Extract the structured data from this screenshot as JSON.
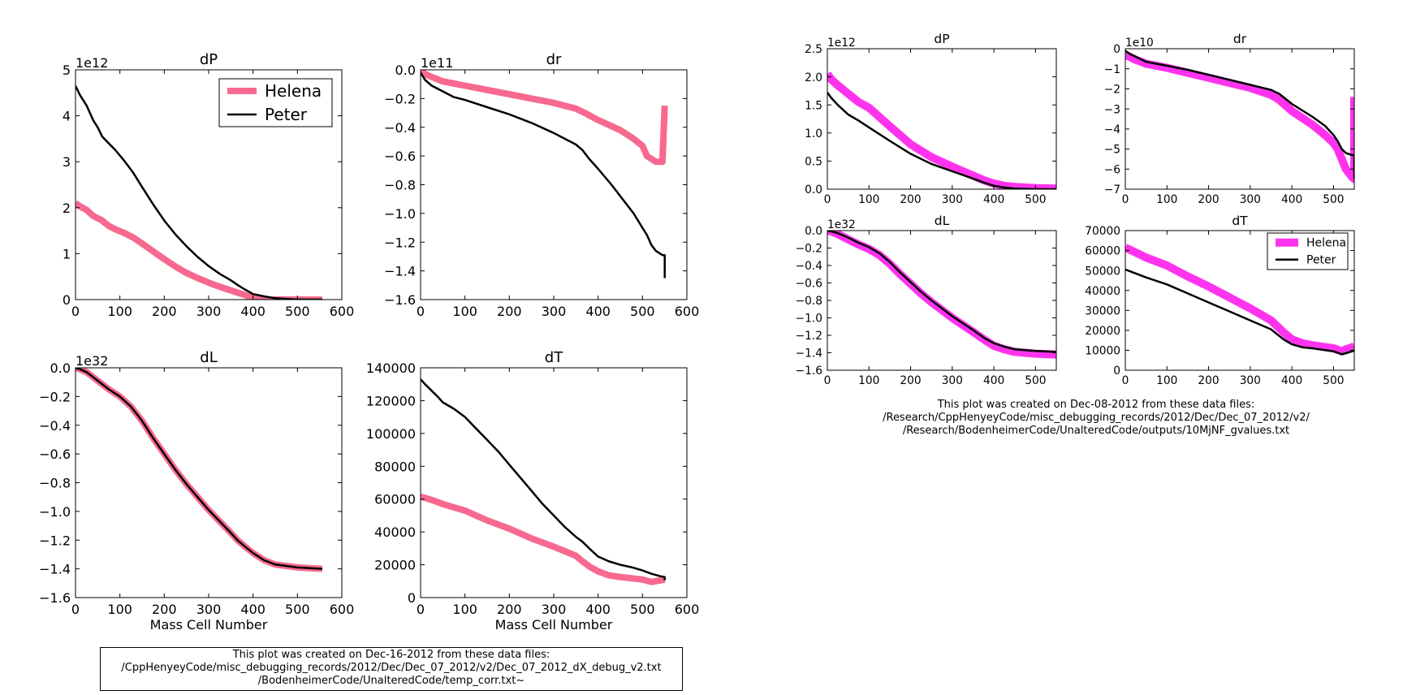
{
  "colors": {
    "helena_left": "#f7698f",
    "helena_right": "#ff33ee",
    "peter": "#000000"
  },
  "chart_data": [
    {
      "type": "line",
      "title": "dP",
      "xlabel": "",
      "ylabel": "",
      "exponent": "1e12",
      "xlim": [
        0,
        600
      ],
      "ylim": [
        0,
        5
      ],
      "xticks": [
        "0",
        "100",
        "200",
        "300",
        "400",
        "500",
        "600"
      ],
      "yticks": [
        "0",
        "1",
        "2",
        "3",
        "4",
        "5"
      ],
      "legend": "top-right",
      "series": [
        {
          "name": "Helena",
          "x": [
            0,
            10,
            25,
            40,
            60,
            75,
            90,
            110,
            130,
            150,
            175,
            200,
            225,
            250,
            275,
            300,
            325,
            350,
            375,
            400,
            425,
            450,
            500,
            556
          ],
          "y": [
            2.1,
            2.03,
            1.95,
            1.82,
            1.72,
            1.6,
            1.53,
            1.45,
            1.35,
            1.22,
            1.05,
            0.88,
            0.72,
            0.58,
            0.47,
            0.37,
            0.28,
            0.2,
            0.12,
            0.04,
            0,
            0,
            0,
            0
          ]
        },
        {
          "name": "Peter",
          "x": [
            0,
            10,
            25,
            40,
            50,
            60,
            75,
            90,
            110,
            130,
            150,
            175,
            200,
            225,
            250,
            275,
            300,
            325,
            350,
            365,
            380,
            400,
            425,
            450,
            500,
            556
          ],
          "y": [
            4.65,
            4.45,
            4.22,
            3.9,
            3.75,
            3.55,
            3.4,
            3.25,
            3.02,
            2.76,
            2.45,
            2.07,
            1.72,
            1.42,
            1.16,
            0.93,
            0.73,
            0.56,
            0.42,
            0.32,
            0.23,
            0.12,
            0.07,
            0.03,
            0,
            0
          ]
        }
      ]
    },
    {
      "type": "line",
      "title": "dr",
      "xlabel": "",
      "ylabel": "",
      "exponent": "1e11",
      "xlim": [
        0,
        600
      ],
      "ylim": [
        -1.6,
        0.0
      ],
      "xticks": [
        "0",
        "100",
        "200",
        "300",
        "400",
        "500",
        "600"
      ],
      "yticks": [
        "0.0",
        "−0.2",
        "−0.4",
        "−0.6",
        "−0.8",
        "−1.0",
        "−1.2",
        "−1.4",
        "−1.6"
      ],
      "series": [
        {
          "name": "Helena",
          "x": [
            0,
            10,
            25,
            50,
            100,
            150,
            200,
            250,
            300,
            350,
            370,
            400,
            450,
            480,
            500,
            510,
            520,
            530,
            545,
            550,
            550
          ],
          "y": [
            0,
            -0.03,
            -0.05,
            -0.08,
            -0.11,
            -0.14,
            -0.17,
            -0.2,
            -0.23,
            -0.27,
            -0.3,
            -0.35,
            -0.42,
            -0.48,
            -0.53,
            -0.6,
            -0.62,
            -0.64,
            -0.64,
            -0.25,
            -0.25
          ]
        },
        {
          "name": "Peter",
          "x": [
            0,
            10,
            25,
            50,
            75,
            100,
            150,
            200,
            250,
            300,
            350,
            365,
            380,
            400,
            430,
            450,
            480,
            500,
            510,
            520,
            530,
            545,
            550,
            550
          ],
          "y": [
            -0.02,
            -0.07,
            -0.11,
            -0.15,
            -0.19,
            -0.21,
            -0.26,
            -0.31,
            -0.37,
            -0.44,
            -0.52,
            -0.56,
            -0.62,
            -0.69,
            -0.8,
            -0.88,
            -1.0,
            -1.1,
            -1.15,
            -1.22,
            -1.26,
            -1.29,
            -1.29,
            -1.45
          ]
        }
      ]
    },
    {
      "type": "line",
      "title": "dL",
      "xlabel": "Mass Cell Number",
      "ylabel": "",
      "exponent": "1e32",
      "xlim": [
        0,
        600
      ],
      "ylim": [
        -1.6,
        0.0
      ],
      "xticks": [
        "0",
        "100",
        "200",
        "300",
        "400",
        "500",
        "600"
      ],
      "yticks": [
        "0.0",
        "−0.2",
        "−0.4",
        "−0.6",
        "−0.8",
        "−1.0",
        "−1.2",
        "−1.4",
        "−1.6"
      ],
      "series": [
        {
          "name": "Helena",
          "x": [
            0,
            10,
            25,
            50,
            75,
            100,
            125,
            150,
            175,
            200,
            225,
            250,
            275,
            300,
            325,
            350,
            365,
            380,
            400,
            425,
            450,
            500,
            556
          ],
          "y": [
            0,
            -0.01,
            -0.03,
            -0.09,
            -0.15,
            -0.2,
            -0.27,
            -0.37,
            -0.49,
            -0.6,
            -0.71,
            -0.81,
            -0.9,
            -0.99,
            -1.07,
            -1.15,
            -1.2,
            -1.24,
            -1.29,
            -1.34,
            -1.37,
            -1.39,
            -1.4
          ]
        },
        {
          "name": "Peter",
          "x": [
            0,
            10,
            25,
            50,
            75,
            100,
            125,
            150,
            175,
            200,
            225,
            250,
            275,
            300,
            325,
            350,
            365,
            380,
            400,
            425,
            450,
            500,
            556
          ],
          "y": [
            0,
            -0.01,
            -0.03,
            -0.09,
            -0.15,
            -0.2,
            -0.27,
            -0.37,
            -0.49,
            -0.6,
            -0.71,
            -0.81,
            -0.9,
            -0.99,
            -1.07,
            -1.15,
            -1.2,
            -1.24,
            -1.29,
            -1.34,
            -1.37,
            -1.39,
            -1.4
          ]
        }
      ]
    },
    {
      "type": "line",
      "title": "dT",
      "xlabel": "Mass Cell Number",
      "ylabel": "",
      "exponent": "",
      "xlim": [
        0,
        600
      ],
      "ylim": [
        0,
        140000
      ],
      "xticks": [
        "0",
        "100",
        "200",
        "300",
        "400",
        "500",
        "600"
      ],
      "yticks": [
        "0",
        "20000",
        "40000",
        "60000",
        "80000",
        "100000",
        "120000",
        "140000"
      ],
      "series": [
        {
          "name": "Helena",
          "x": [
            0,
            25,
            50,
            100,
            150,
            200,
            250,
            300,
            350,
            365,
            380,
            400,
            425,
            450,
            500,
            520,
            540,
            550
          ],
          "y": [
            61500,
            59500,
            57000,
            53000,
            47000,
            42000,
            36000,
            31000,
            25500,
            22000,
            19000,
            16000,
            13500,
            12500,
            11000,
            9500,
            10500,
            11000
          ]
        },
        {
          "name": "Peter",
          "x": [
            0,
            10,
            25,
            40,
            50,
            75,
            100,
            125,
            150,
            175,
            200,
            225,
            250,
            275,
            300,
            325,
            350,
            365,
            380,
            400,
            425,
            450,
            475,
            500,
            520,
            540,
            550,
            550
          ],
          "y": [
            133000,
            130000,
            126000,
            122000,
            119000,
            115000,
            110000,
            103000,
            96000,
            89000,
            81000,
            73000,
            65000,
            57000,
            50000,
            43000,
            37000,
            34000,
            30000,
            25000,
            22000,
            20000,
            18500,
            16500,
            14500,
            13000,
            12500,
            10500
          ]
        }
      ]
    },
    {
      "type": "line",
      "title": "dP",
      "xlabel": "",
      "ylabel": "",
      "exponent": "1e12",
      "xlim": [
        0,
        550
      ],
      "ylim": [
        0,
        2.5
      ],
      "xticks": [
        "0",
        "100",
        "200",
        "300",
        "400",
        "500"
      ],
      "yticks": [
        "0.0",
        "0.5",
        "1.0",
        "1.5",
        "2.0",
        "2.5"
      ],
      "series": [
        {
          "name": "Helena",
          "x": [
            0,
            10,
            25,
            50,
            75,
            100,
            150,
            200,
            250,
            300,
            350,
            375,
            400,
            425,
            450,
            500,
            550
          ],
          "y": [
            2.05,
            1.95,
            1.85,
            1.7,
            1.55,
            1.45,
            1.12,
            0.8,
            0.57,
            0.4,
            0.24,
            0.16,
            0.1,
            0.06,
            0.04,
            0.02,
            0.01
          ]
        },
        {
          "name": "Peter",
          "x": [
            0,
            10,
            25,
            50,
            75,
            100,
            150,
            200,
            250,
            300,
            350,
            375,
            400,
            425,
            450,
            500,
            550
          ],
          "y": [
            1.72,
            1.62,
            1.5,
            1.33,
            1.22,
            1.1,
            0.86,
            0.63,
            0.45,
            0.32,
            0.19,
            0.12,
            0.06,
            0.03,
            0.01,
            0,
            0
          ]
        }
      ]
    },
    {
      "type": "line",
      "title": "dr",
      "xlabel": "",
      "ylabel": "",
      "exponent": "1e10",
      "xlim": [
        0,
        550
      ],
      "ylim": [
        -7,
        0
      ],
      "xticks": [
        "0",
        "100",
        "200",
        "300",
        "400",
        "500"
      ],
      "yticks": [
        "0",
        "−1",
        "−2",
        "−3",
        "−4",
        "−5",
        "−6",
        "−7"
      ],
      "series": [
        {
          "name": "Helena",
          "x": [
            0,
            10,
            25,
            50,
            100,
            150,
            200,
            250,
            300,
            350,
            370,
            400,
            450,
            480,
            500,
            510,
            520,
            530,
            545,
            550,
            550
          ],
          "y": [
            -0.3,
            -0.4,
            -0.55,
            -0.75,
            -0.95,
            -1.2,
            -1.45,
            -1.7,
            -1.95,
            -2.3,
            -2.55,
            -3.1,
            -3.8,
            -4.3,
            -4.7,
            -5.0,
            -5.5,
            -6.0,
            -6.4,
            -6.5,
            -2.4
          ]
        },
        {
          "name": "Peter",
          "x": [
            0,
            10,
            25,
            50,
            100,
            150,
            200,
            250,
            300,
            350,
            370,
            400,
            450,
            480,
            500,
            510,
            520,
            530,
            545,
            550,
            550
          ],
          "y": [
            -0.1,
            -0.25,
            -0.4,
            -0.65,
            -0.85,
            -1.05,
            -1.3,
            -1.55,
            -1.8,
            -2.05,
            -2.25,
            -2.75,
            -3.4,
            -3.85,
            -4.3,
            -4.6,
            -5.0,
            -5.2,
            -5.3,
            -5.3,
            -6.5
          ]
        }
      ]
    },
    {
      "type": "line",
      "title": "dL",
      "xlabel": "",
      "ylabel": "",
      "exponent": "1e32",
      "xlim": [
        0,
        550
      ],
      "ylim": [
        -1.6,
        0.0
      ],
      "xticks": [
        "0",
        "100",
        "200",
        "300",
        "400",
        "500"
      ],
      "yticks": [
        "0.0",
        "−0.2",
        "−0.4",
        "−0.6",
        "−0.8",
        "−1.0",
        "−1.2",
        "−1.4",
        "−1.6"
      ],
      "series": [
        {
          "name": "Helena",
          "x": [
            0,
            10,
            25,
            50,
            75,
            100,
            125,
            150,
            175,
            200,
            225,
            250,
            275,
            300,
            325,
            350,
            365,
            380,
            400,
            425,
            450,
            500,
            550
          ],
          "y": [
            0,
            -0.01,
            -0.04,
            -0.1,
            -0.16,
            -0.21,
            -0.28,
            -0.38,
            -0.5,
            -0.61,
            -0.72,
            -0.82,
            -0.91,
            -1.0,
            -1.08,
            -1.16,
            -1.21,
            -1.26,
            -1.32,
            -1.36,
            -1.39,
            -1.41,
            -1.42
          ]
        },
        {
          "name": "Peter",
          "x": [
            0,
            10,
            25,
            50,
            75,
            100,
            125,
            150,
            175,
            200,
            225,
            250,
            275,
            300,
            325,
            350,
            365,
            380,
            400,
            425,
            450,
            500,
            550
          ],
          "y": [
            0,
            -0.01,
            -0.03,
            -0.08,
            -0.14,
            -0.19,
            -0.26,
            -0.36,
            -0.48,
            -0.59,
            -0.7,
            -0.8,
            -0.89,
            -0.98,
            -1.06,
            -1.14,
            -1.19,
            -1.24,
            -1.29,
            -1.33,
            -1.36,
            -1.38,
            -1.39
          ]
        }
      ]
    },
    {
      "type": "line",
      "title": "dT",
      "xlabel": "",
      "ylabel": "",
      "exponent": "",
      "xlim": [
        0,
        550
      ],
      "ylim": [
        0,
        70000
      ],
      "xticks": [
        "0",
        "100",
        "200",
        "300",
        "400",
        "500"
      ],
      "yticks": [
        "0",
        "10000",
        "20000",
        "30000",
        "40000",
        "50000",
        "60000",
        "70000"
      ],
      "legend": "top-right",
      "series": [
        {
          "name": "Helena",
          "x": [
            0,
            25,
            50,
            100,
            150,
            200,
            250,
            300,
            350,
            365,
            380,
            400,
            425,
            450,
            500,
            520,
            530,
            545,
            550
          ],
          "y": [
            61500,
            59000,
            56500,
            52500,
            47000,
            42000,
            36500,
            31000,
            25000,
            22000,
            19000,
            15500,
            13500,
            12500,
            11000,
            9500,
            10500,
            11500,
            12000
          ]
        },
        {
          "name": "Peter",
          "x": [
            0,
            25,
            50,
            100,
            150,
            200,
            250,
            300,
            350,
            365,
            380,
            400,
            425,
            450,
            500,
            520,
            530,
            545,
            550
          ],
          "y": [
            50500,
            48500,
            46500,
            43000,
            38500,
            34000,
            29500,
            25000,
            20500,
            18000,
            15500,
            13000,
            11500,
            11000,
            9500,
            8000,
            8500,
            9500,
            10000
          ]
        }
      ]
    }
  ],
  "captions": {
    "left": [
      "This plot was created on Dec-16-2012 from these data files:",
      "/CppHenyeyCode/misc_debugging_records/2012/Dec/Dec_07_2012/v2/Dec_07_2012_dX_debug_v2.txt",
      "/BodenheimerCode/UnalteredCode/temp_corr.txt~"
    ],
    "right": [
      "This plot was created on Dec-08-2012 from these data files:",
      "/Research/CppHenyeyCode/misc_debugging_records/2012/Dec/Dec_07_2012/v2/",
      "/Research/BodenheimerCode/UnalteredCode/outputs/10MjNF_gvalues.txt"
    ]
  }
}
